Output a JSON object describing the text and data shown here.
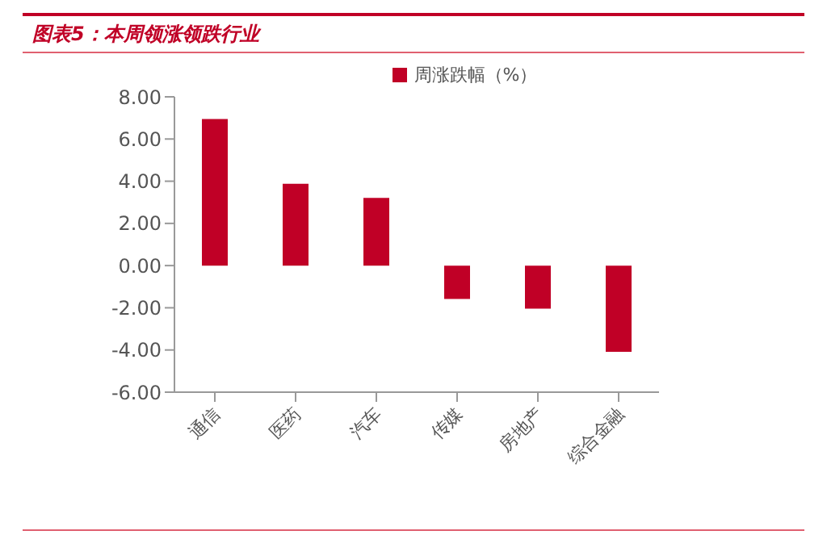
{
  "chart_data": {
    "type": "bar",
    "title": "图表5：本周领涨领跌行业",
    "categories": [
      "通信",
      "医药",
      "汽车",
      "传媒",
      "房地产",
      "综合金融"
    ],
    "series": [
      {
        "name": "周涨跌幅（%）",
        "color": "#c00026",
        "values": [
          6.95,
          3.88,
          3.21,
          -1.58,
          -2.04,
          -4.09
        ]
      }
    ],
    "ylim": [
      -6,
      8
    ],
    "yticks": [
      {
        "value": -6,
        "label": "-6.00"
      },
      {
        "value": -4,
        "label": "-4.00"
      },
      {
        "value": -2,
        "label": "-2.00"
      },
      {
        "value": 0,
        "label": "0.00"
      },
      {
        "value": 2,
        "label": "2.00"
      },
      {
        "value": 4,
        "label": "4.00"
      },
      {
        "value": 6,
        "label": "6.00"
      },
      {
        "value": 8,
        "label": "8.00"
      }
    ],
    "grid": false,
    "legend": "top"
  }
}
